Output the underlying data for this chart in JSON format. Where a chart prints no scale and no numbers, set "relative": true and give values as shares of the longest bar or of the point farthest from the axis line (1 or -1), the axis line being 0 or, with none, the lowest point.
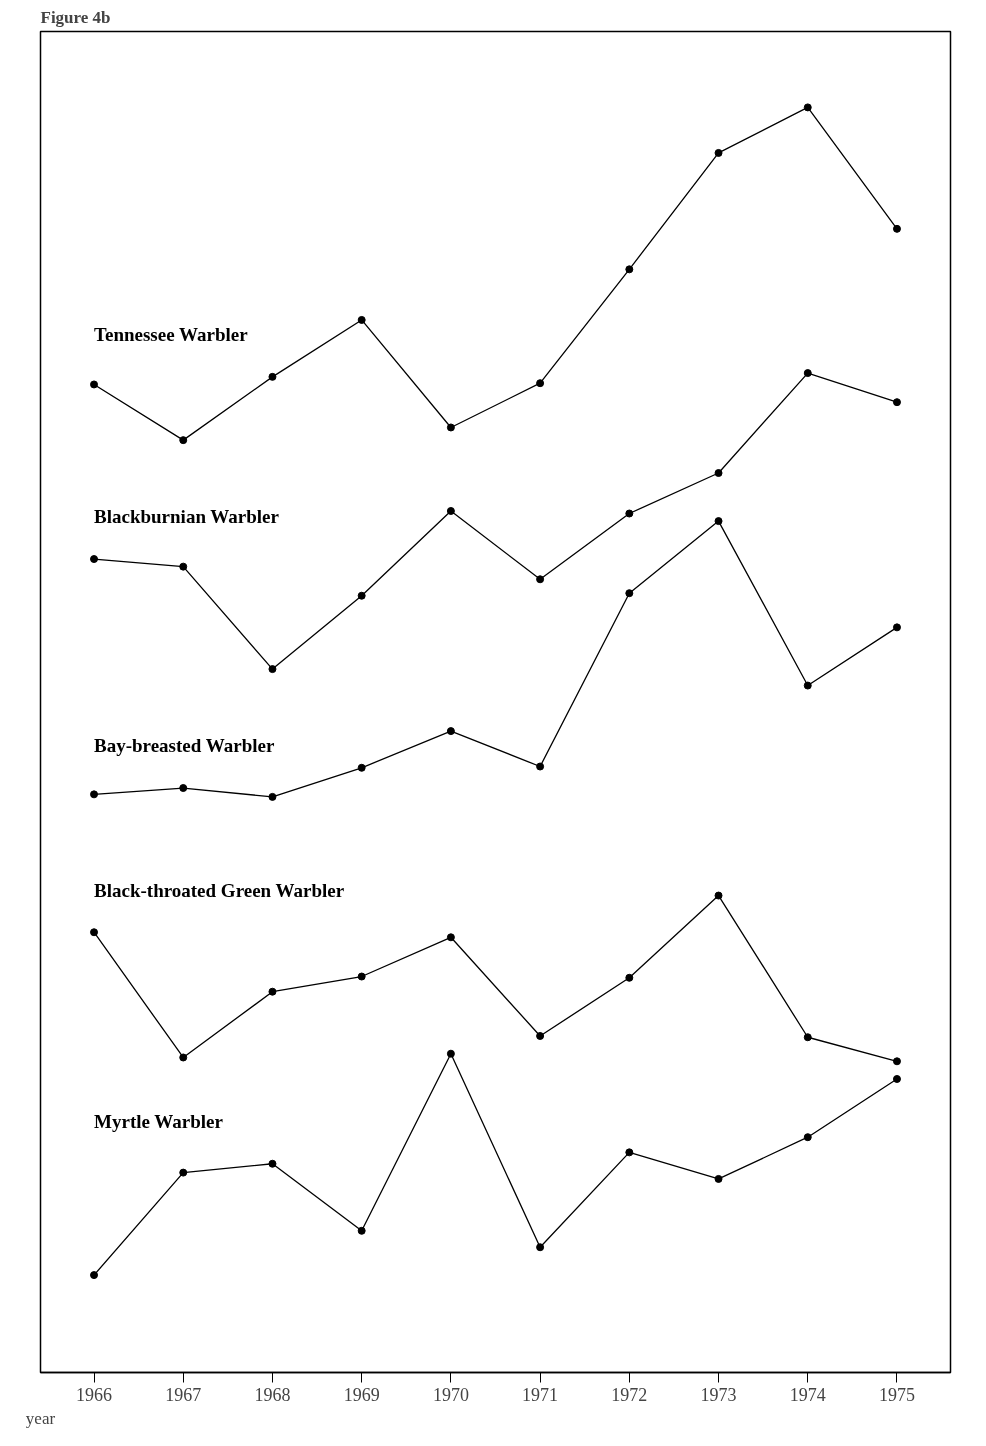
{
  "chart_data": {
    "type": "line",
    "title": "Figure 4b",
    "xlabel": "year",
    "relative": true,
    "marker": "circle",
    "grid": false,
    "categories": [
      "1966",
      "1967",
      "1968",
      "1969",
      "1970",
      "1971",
      "1972",
      "1973",
      "1974",
      "1975"
    ],
    "series": [
      {
        "name": "Tennessee Warbler",
        "color": "#000000",
        "values": [
          0.781,
          0.737,
          0.787,
          0.832,
          0.747,
          0.782,
          0.872,
          0.964,
          1,
          0.904
        ]
      },
      {
        "name": "Blackburnian Warbler",
        "color": "#000000",
        "values": [
          0.643,
          0.637,
          0.556,
          0.614,
          0.681,
          0.627,
          0.679,
          0.711,
          0.79,
          0.767
        ]
      },
      {
        "name": "Bay-breasted Warbler",
        "color": "#000000",
        "values": [
          0.457,
          0.462,
          0.455,
          0.478,
          0.507,
          0.479,
          0.616,
          0.673,
          0.543,
          0.589
        ]
      },
      {
        "name": "Black-throated Green Warbler",
        "color": "#000000",
        "values": [
          0.348,
          0.249,
          0.301,
          0.313,
          0.344,
          0.266,
          0.312,
          0.377,
          0.265,
          0.246
        ]
      },
      {
        "name": "Myrtle Warbler",
        "color": "#000000",
        "values": [
          0.077,
          0.158,
          0.165,
          0.112,
          0.252,
          0.099,
          0.174,
          0.153,
          0.186,
          0.232
        ]
      }
    ]
  }
}
